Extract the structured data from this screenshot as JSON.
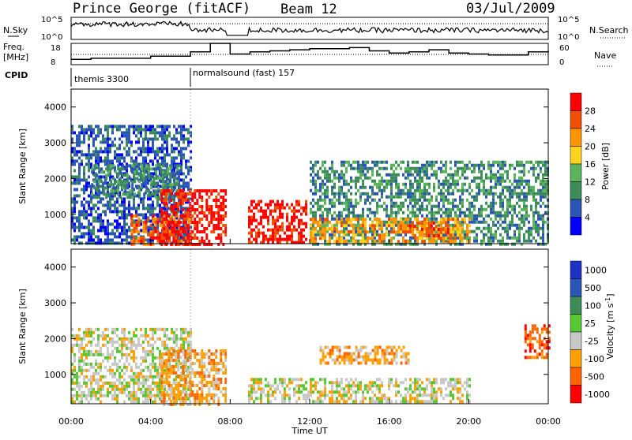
{
  "header": {
    "station": "Prince George (fitACF)",
    "beam": "Beam 12",
    "date": "03/Jul/2009"
  },
  "top_panels": {
    "nsky_label": "N.Sky",
    "nsky_ticks": [
      "10^5",
      "10^0"
    ],
    "nsearch_label": "N.Search",
    "nsearch_ticks": [
      "10^5",
      "10^0"
    ],
    "freq_label": "Freq.",
    "freq_unit": "[MHz]",
    "freq_ticks": [
      "18",
      "8"
    ],
    "nave_label": "Nave",
    "nave_ticks": [
      "60",
      "0"
    ],
    "cpid_label": "CPID",
    "cpid_segments": [
      "themis 3300",
      "normalsound (fast) 157"
    ]
  },
  "power_panel": {
    "ylabel": "Slant Range [km]",
    "yticks": [
      "1000",
      "2000",
      "3000",
      "4000"
    ],
    "colorbar_label": "Power [dB]",
    "colorbar_ticks": [
      "4",
      "8",
      "12",
      "16",
      "20",
      "24",
      "28"
    ],
    "colors": [
      "#0000ff",
      "#2a55b4",
      "#3c8c5a",
      "#5ab45a",
      "#ffd21e",
      "#ff9600",
      "#f05000",
      "#ff0000"
    ]
  },
  "velocity_panel": {
    "ylabel": "Slant Range [km]",
    "yticks": [
      "1000",
      "2000",
      "3000",
      "4000"
    ],
    "colorbar_label": "Velocity [m s^-1]",
    "colorbar_ticks": [
      "1000",
      "500",
      "100",
      "25",
      "-25",
      "-100",
      "-500",
      "-1000"
    ],
    "colors": [
      "#1e32c8",
      "#2a55b4",
      "#3c8c5a",
      "#55c832",
      "#c8c8c8",
      "#ffa000",
      "#ff6400",
      "#ff0000"
    ]
  },
  "xaxis": {
    "label": "Time UT",
    "ticks": [
      "00:00",
      "04:00",
      "08:00",
      "12:00",
      "16:00",
      "20:00",
      "00:00"
    ]
  },
  "chart_data": {
    "type": "heatmap",
    "x_range_hours": [
      0,
      24
    ],
    "y_range_km": [
      180,
      4500
    ],
    "gap_hours": [
      7.83,
      8.88
    ],
    "cpid_change_hour": 6.0,
    "power_regions": [
      {
        "t0": 0.0,
        "t1": 6.0,
        "r0": 200,
        "r1": 3500,
        "level": 1
      },
      {
        "t0": 1.0,
        "t1": 5.5,
        "r0": 1500,
        "r1": 2400,
        "level": 2
      },
      {
        "t0": 3.0,
        "t1": 6.0,
        "r0": 200,
        "r1": 1000,
        "level": 6
      },
      {
        "t0": 4.5,
        "t1": 7.8,
        "r0": 200,
        "r1": 1700,
        "level": 7
      },
      {
        "t0": 8.9,
        "t1": 11.8,
        "r0": 200,
        "r1": 1400,
        "level": 7
      },
      {
        "t0": 12.0,
        "t1": 24.0,
        "r0": 200,
        "r1": 2500,
        "level": 2
      },
      {
        "t0": 12.0,
        "t1": 20.0,
        "r0": 200,
        "r1": 900,
        "level": 5
      },
      {
        "t0": 17.0,
        "t1": 19.0,
        "r0": 400,
        "r1": 800,
        "level": 6
      }
    ],
    "velocity_regions": [
      {
        "t0": 0.0,
        "t1": 6.0,
        "r0": 200,
        "r1": 2300,
        "level": 4
      },
      {
        "t0": 4.5,
        "t1": 7.8,
        "r0": 200,
        "r1": 1700,
        "level": 5
      },
      {
        "t0": 8.9,
        "t1": 20.0,
        "r0": 200,
        "r1": 900,
        "level": 4
      },
      {
        "t0": 12.5,
        "t1": 17.0,
        "r0": 1300,
        "r1": 1800,
        "level": 5
      },
      {
        "t0": 22.8,
        "t1": 24.0,
        "r0": 1500,
        "r1": 2400,
        "level": 6
      }
    ],
    "nsky_level": 0.55,
    "freq_mhz": [
      10.5,
      11,
      11,
      11,
      12,
      12,
      14,
      18,
      13,
      14,
      14.5,
      15,
      15.5,
      15.5,
      16,
      14.5,
      13.5,
      14,
      15,
      13.5,
      13,
      12.5,
      12.5,
      14,
      14.5
    ],
    "nave_dotted": 27
  }
}
